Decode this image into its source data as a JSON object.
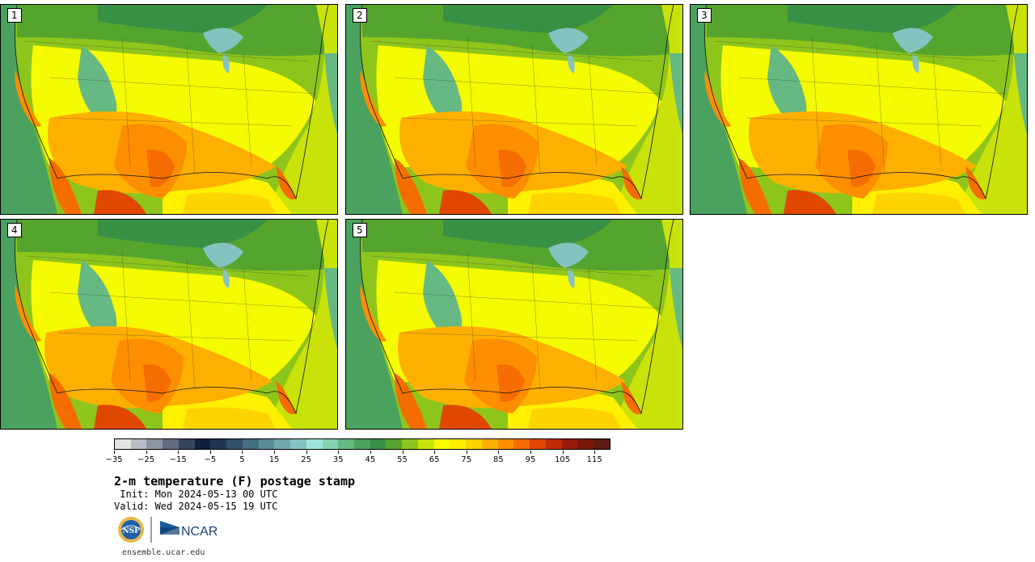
{
  "title": "2-m temperature (F) postage stamp",
  "init_line": " Init: Mon 2024-05-13 00 UTC",
  "valid_line": "Valid: Wed 2024-05-15 19 UTC",
  "site": "ensemble.ucar.edu",
  "logos": {
    "nsf_text": "NSF",
    "ncar_text": "NCAR"
  },
  "members": [
    "1",
    "2",
    "3",
    "4",
    "5"
  ],
  "colorbar": {
    "colors": [
      "#e3e3e3",
      "#b9bcc3",
      "#8e94a1",
      "#636c80",
      "#364560",
      "#10203a",
      "#1f3551",
      "#315068",
      "#446d80",
      "#588a97",
      "#6fa8ad",
      "#86c2c0",
      "#9ee3d7",
      "#86d2b0",
      "#66b982",
      "#4aa25e",
      "#379044",
      "#55a42e",
      "#8ec51c",
      "#c9e209",
      "#f5fb00",
      "#fef000",
      "#fed400",
      "#feb000",
      "#fd8e00",
      "#f56d00",
      "#e04700",
      "#c02a04",
      "#9a1a0a",
      "#781809",
      "#5a1b10"
    ],
    "tick_labels": [
      "−35",
      "−25",
      "−15",
      "−5",
      "5",
      "15",
      "25",
      "35",
      "45",
      "55",
      "65",
      "75",
      "85",
      "95",
      "105",
      "115"
    ]
  }
}
